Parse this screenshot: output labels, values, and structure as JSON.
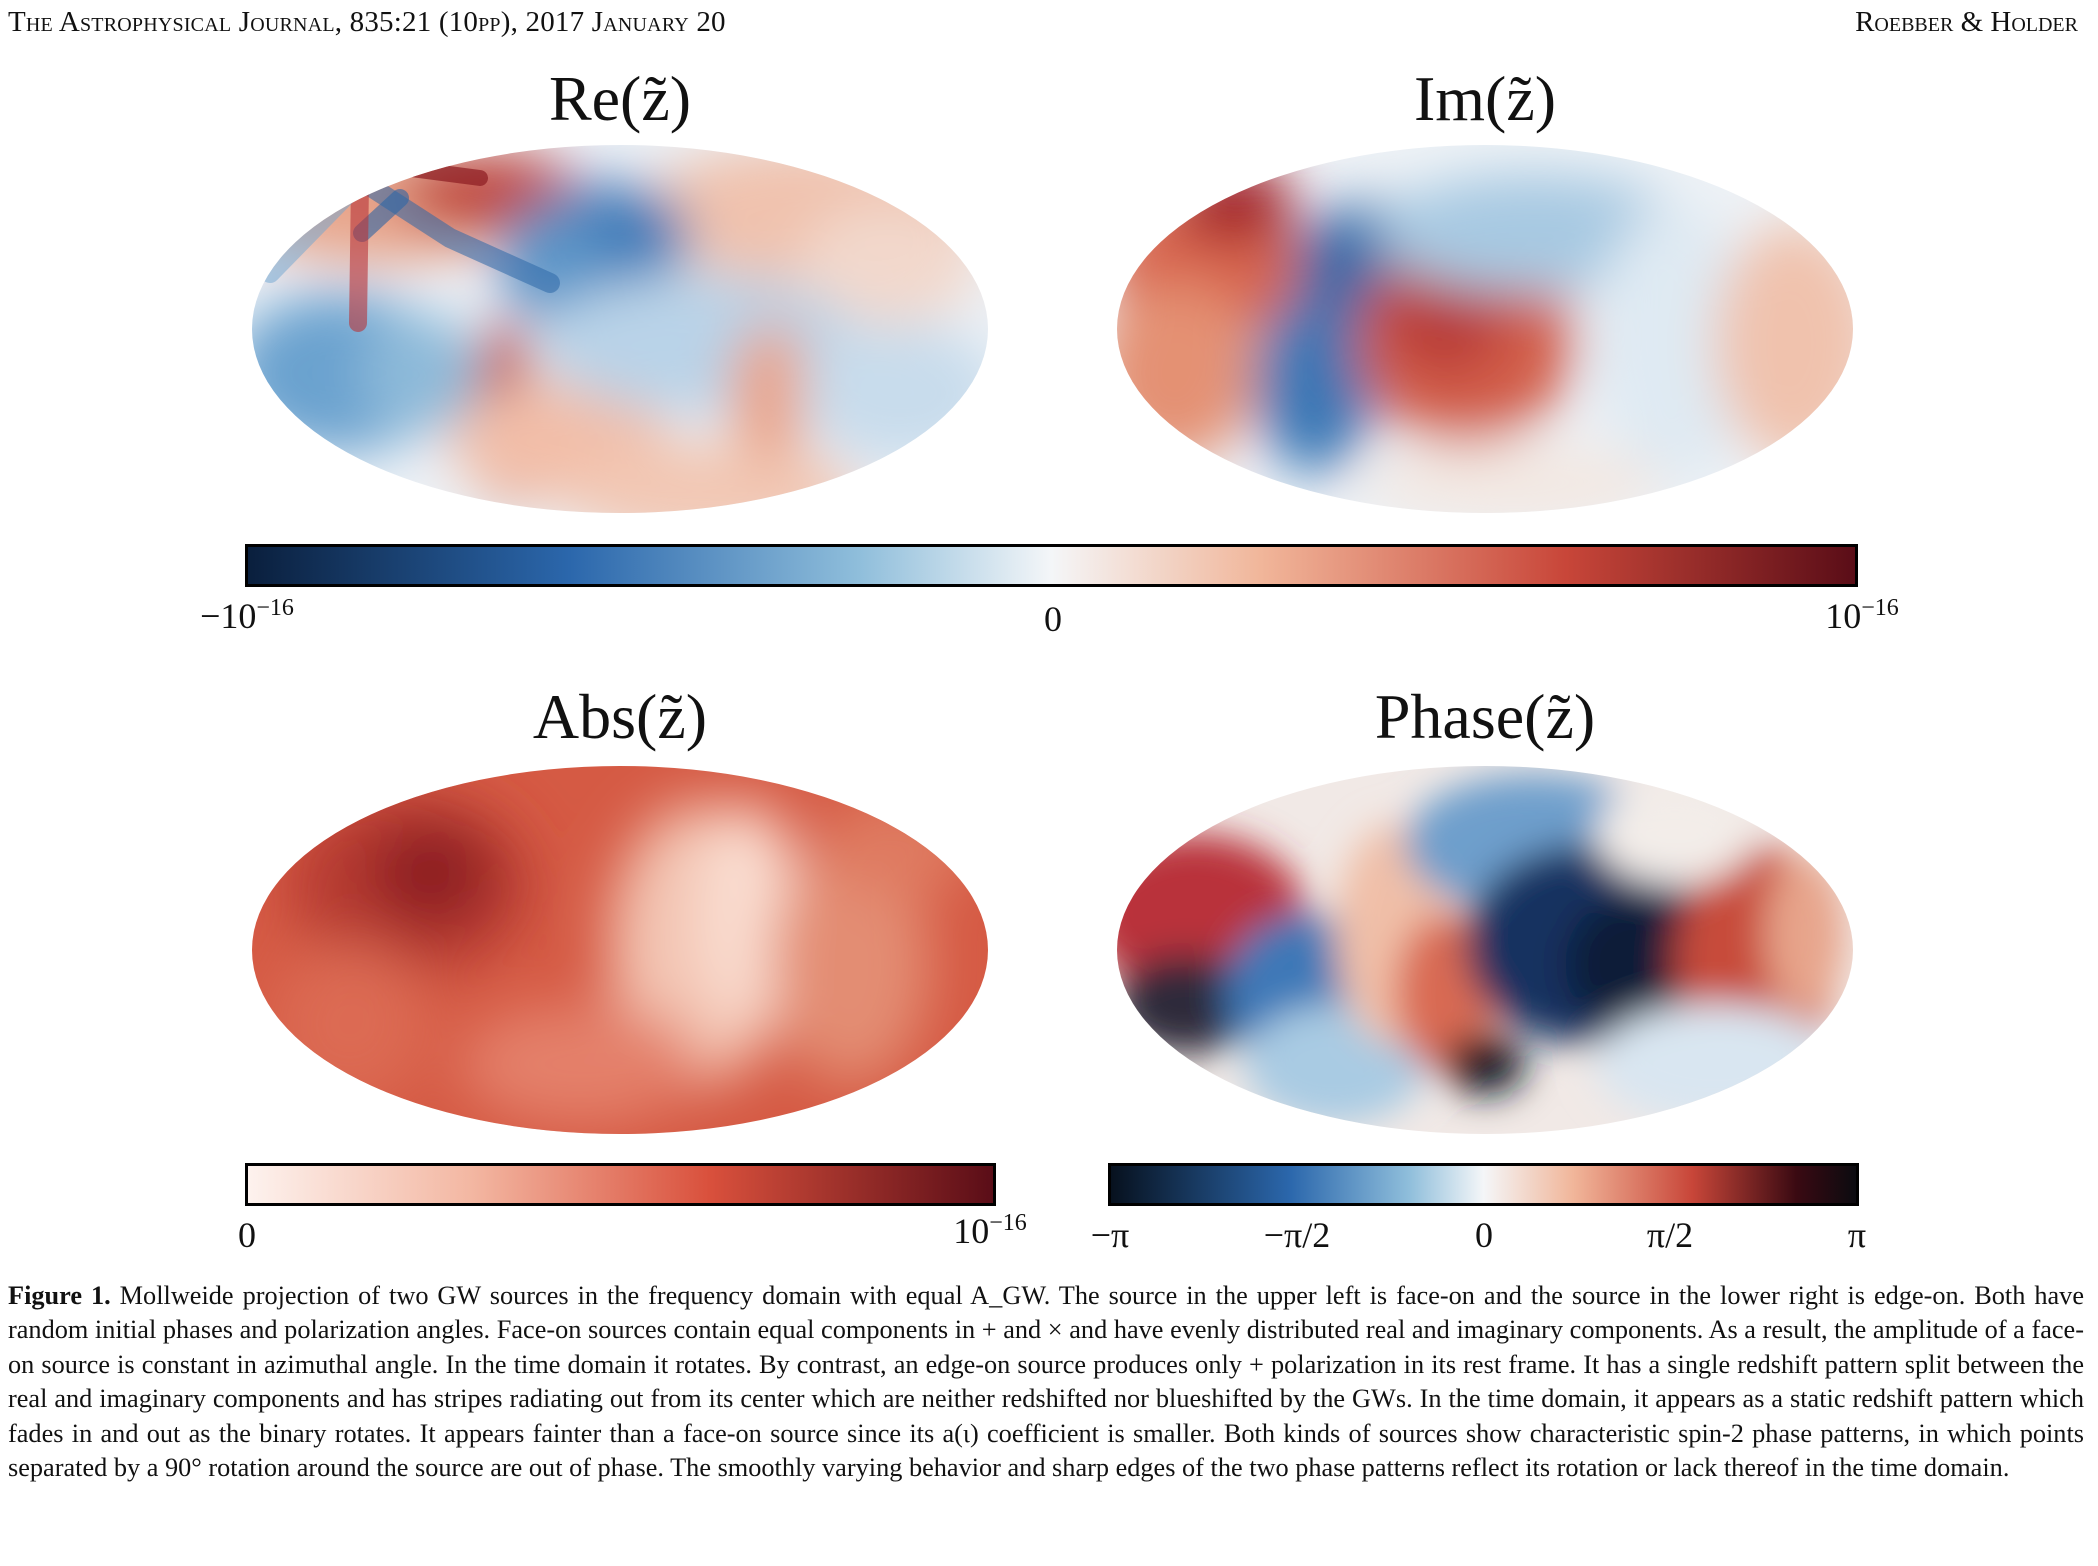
{
  "header": {
    "journal": "The Astrophysical Journal, 835:21 (10pp), 2017 January 20",
    "authors": "Roebber & Holder"
  },
  "panels": {
    "re_title": "Re(z̃)",
    "im_title": "Im(z̃)",
    "abs_title": "Abs(z̃)",
    "phase_title": "Phase(z̃)"
  },
  "colorbars": {
    "top": {
      "min": "−10",
      "min_exp": "−16",
      "mid": "0",
      "max": "10",
      "max_exp": "−16"
    },
    "abs": {
      "min": "0",
      "max": "10",
      "max_exp": "−16"
    },
    "phase": {
      "ticks": [
        "−π",
        "−π/2",
        "0",
        "π/2",
        "π"
      ]
    }
  },
  "colors": {
    "diverging": [
      "#0a1f3d",
      "#2b67ac",
      "#8fbedb",
      "#f4f6f8",
      "#f1b69a",
      "#c84639",
      "#5a0d17"
    ],
    "sequential": [
      "#fdf2ee",
      "#f3b7a2",
      "#d9503c",
      "#5a0d17"
    ],
    "phase": [
      "#07111e",
      "#2b67ac",
      "#f4f6f8",
      "#c84639",
      "#0b0b10"
    ]
  },
  "caption": {
    "label": "Figure 1.",
    "text": "Mollweide projection of two GW sources in the frequency domain with equal A_GW. The source in the upper left is face-on and the source in the lower right is edge-on. Both have random initial phases and polarization angles. Face-on sources contain equal components in + and × and have evenly distributed real and imaginary components. As a result, the amplitude of a face-on source is constant in azimuthal angle. In the time domain it rotates. By contrast, an edge-on source produces only + polarization in its rest frame. It has a single redshift pattern split between the real and imaginary components and has stripes radiating out from its center which are neither redshifted nor blueshifted by the GWs. In the time domain, it appears as a static redshift pattern which fades in and out as the binary rotates. It appears fainter than a face-on source since its a(ι) coefficient is smaller. Both kinds of sources show characteristic spin-2 phase patterns, in which points separated by a 90° rotation around the source are out of phase. The smoothly varying behavior and sharp edges of the two phase patterns reflect its rotation or lack thereof in the time domain."
  }
}
